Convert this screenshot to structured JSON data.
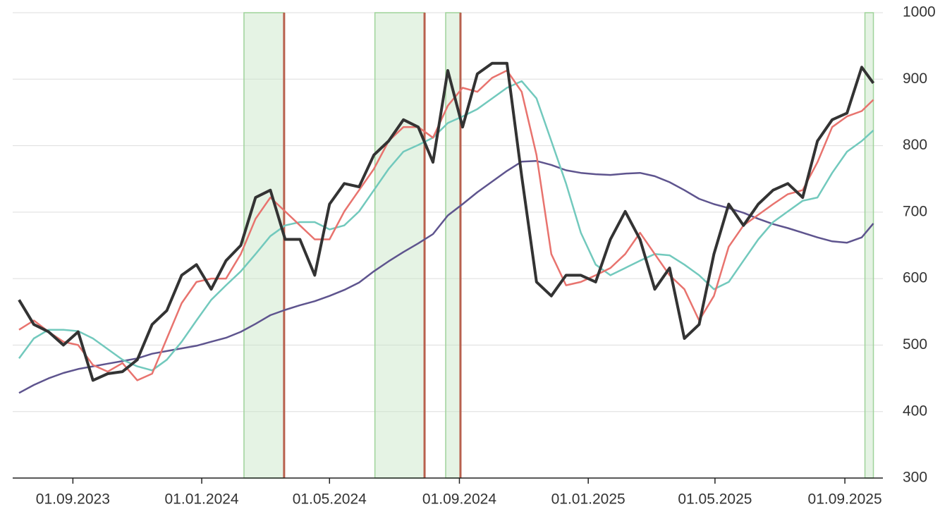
{
  "chart_data": {
    "type": "line",
    "x": [
      "12.07.2023",
      "26.07.2023",
      "09.08.2023",
      "23.08.2023",
      "06.09.2023",
      "20.09.2023",
      "04.10.2023",
      "18.10.2023",
      "01.11.2023",
      "15.11.2023",
      "29.11.2023",
      "13.12.2023",
      "27.12.2023",
      "10.01.2024",
      "24.01.2024",
      "07.02.2024",
      "21.02.2024",
      "06.03.2024",
      "20.03.2024",
      "03.04.2024",
      "17.04.2024",
      "01.05.2024",
      "15.05.2024",
      "29.05.2024",
      "12.06.2024",
      "26.06.2024",
      "10.07.2024",
      "24.07.2024",
      "07.08.2024",
      "21.08.2024",
      "04.09.2024",
      "18.09.2024",
      "02.10.2024",
      "16.10.2024",
      "30.10.2024",
      "13.11.2024",
      "27.11.2024",
      "11.12.2024",
      "25.12.2024",
      "08.01.2025",
      "22.01.2025",
      "05.02.2025",
      "19.02.2025",
      "05.03.2025",
      "19.03.2025",
      "02.04.2025",
      "16.04.2025",
      "30.04.2025",
      "14.05.2025",
      "28.05.2025",
      "11.06.2025",
      "25.06.2025",
      "09.07.2025",
      "23.07.2025",
      "06.08.2025",
      "20.08.2025",
      "03.09.2025",
      "17.09.2025",
      "28.09.2025"
    ],
    "series": [
      {
        "color": "#333333",
        "width": 4,
        "values": [
          568,
          531,
          520,
          500,
          520,
          447,
          457,
          460,
          478,
          531,
          552,
          605,
          621,
          584,
          627,
          650,
          722,
          733,
          659,
          659,
          605,
          712,
          743,
          738,
          786,
          807,
          839,
          828,
          775,
          913,
          828,
          908,
          924,
          924,
          754,
          595,
          574,
          605,
          605,
          595,
          659,
          701,
          659,
          584,
          616,
          510,
          531,
          637,
          712,
          680,
          712,
          733,
          743,
          722,
          807,
          839,
          849,
          918,
          894
        ]
      },
      {
        "color": "#e8736e",
        "width": 2.5,
        "values": [
          523,
          537,
          520,
          505,
          500,
          470,
          460,
          473,
          447,
          457,
          510,
          563,
          595,
          600,
          600,
          637,
          690,
          722,
          701,
          680,
          659,
          659,
          701,
          733,
          765,
          807,
          828,
          828,
          812,
          860,
          887,
          881,
          902,
          913,
          881,
          786,
          637,
          590,
          595,
          605,
          616,
          637,
          669,
          637,
          605,
          584,
          537,
          574,
          648,
          680,
          696,
          712,
          727,
          733,
          775,
          828,
          844,
          852,
          869
        ]
      },
      {
        "color": "#72c9bd",
        "width": 2.5,
        "values": [
          480,
          510,
          523,
          523,
          521,
          510,
          494,
          478,
          468,
          462,
          478,
          505,
          537,
          568,
          590,
          611,
          637,
          664,
          680,
          685,
          685,
          674,
          680,
          701,
          733,
          765,
          791,
          801,
          812,
          834,
          844,
          855,
          871,
          887,
          897,
          871,
          807,
          743,
          669,
          621,
          605,
          616,
          627,
          637,
          635,
          621,
          605,
          584,
          595,
          627,
          659,
          685,
          701,
          717,
          722,
          759,
          791,
          807,
          823
        ]
      },
      {
        "color": "#5e548e",
        "width": 2.5,
        "values": [
          428,
          440,
          450,
          458,
          464,
          468,
          472,
          476,
          480,
          487,
          491,
          495,
          499,
          505,
          511,
          520,
          532,
          545,
          553,
          560,
          566,
          574,
          583,
          594,
          611,
          626,
          640,
          653,
          667,
          695,
          712,
          730,
          746,
          762,
          776,
          777,
          771,
          763,
          759,
          757,
          756,
          758,
          759,
          754,
          745,
          733,
          720,
          712,
          706,
          699,
          690,
          682,
          676,
          669,
          662,
          656,
          654,
          662,
          683
        ]
      }
    ],
    "highlight_ranges": [
      [
        "10.02.2024",
        "19.03.2024"
      ],
      [
        "13.06.2024",
        "30.07.2024"
      ],
      [
        "19.08.2024",
        "02.09.2024"
      ],
      [
        "20.09.2025",
        "28.09.2025"
      ]
    ],
    "markers": [
      "19.03.2024",
      "30.07.2024",
      "02.09.2024"
    ],
    "xlim": [
      "06.07.2023",
      "07.10.2025"
    ],
    "xticks": [
      "01.09.2023",
      "01.01.2024",
      "01.05.2024",
      "01.09.2024",
      "01.01.2025",
      "01.05.2025",
      "01.09.2025"
    ],
    "ylim": [
      300,
      1000
    ],
    "yticks": [
      300,
      400,
      500,
      600,
      700,
      800,
      900,
      1000
    ],
    "grid": true
  }
}
